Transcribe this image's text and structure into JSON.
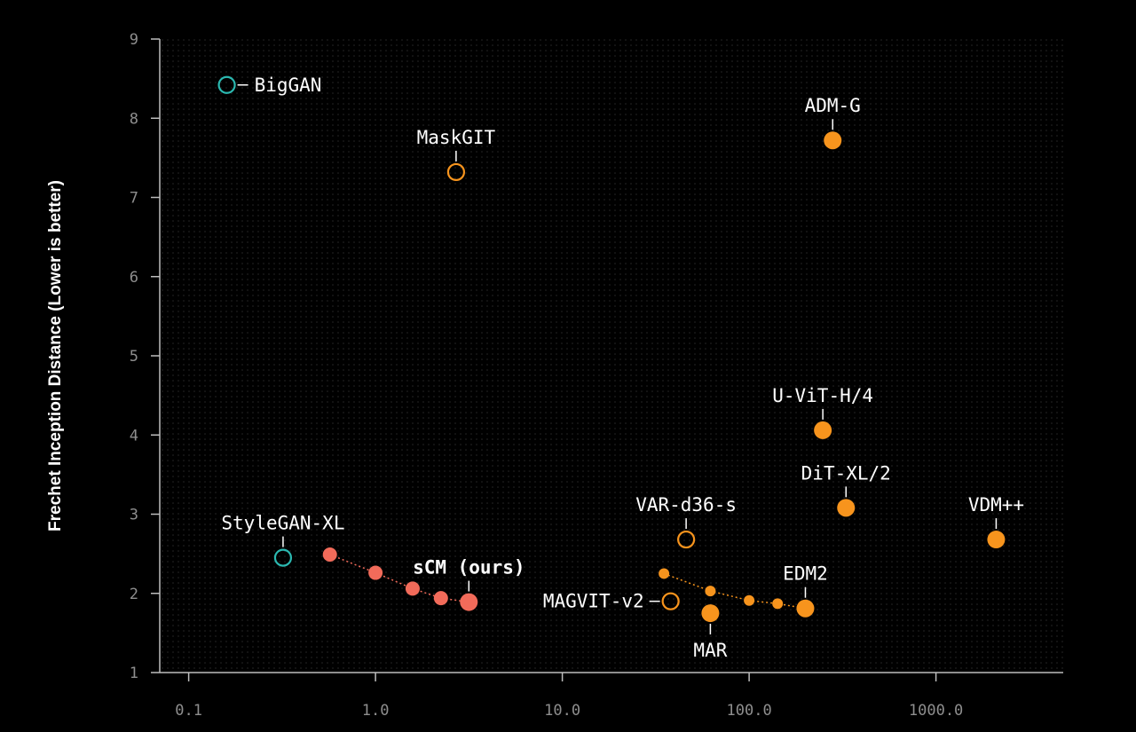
{
  "chart_data": {
    "type": "scatter",
    "title": "",
    "xlabel": "",
    "ylabel": "Frechet Inception Distance (Lower is better)",
    "xscale": "log",
    "xlim": [
      0.07,
      4800
    ],
    "ylim": [
      1,
      9
    ],
    "x_ticks": [
      0.1,
      1,
      10,
      100,
      1000
    ],
    "x_tick_labels": [
      "0.1",
      "1.0",
      "10.0",
      "100.0",
      "1000.0"
    ],
    "y_ticks": [
      1,
      2,
      3,
      4,
      5,
      6,
      7,
      8,
      9
    ],
    "y_tick_labels": [
      "1",
      "2",
      "3",
      "4",
      "5",
      "6",
      "7",
      "8",
      "9"
    ],
    "grid": "dotted background",
    "legend": "none",
    "colors": {
      "teal": "#2bb8b0",
      "orange": "#f7941d",
      "coral": "#f26b5a"
    },
    "points": [
      {
        "label": "BigGAN",
        "x": 0.16,
        "y": 8.42,
        "color": "#2bb8b0",
        "style": "hollow",
        "size": "large",
        "label_pos": "right"
      },
      {
        "label": "StyleGAN-XL",
        "x": 0.32,
        "y": 2.45,
        "color": "#2bb8b0",
        "style": "hollow",
        "size": "large",
        "label_pos": "above"
      },
      {
        "label": "MaskGIT",
        "x": 2.7,
        "y": 7.32,
        "color": "#f7941d",
        "style": "hollow",
        "size": "large",
        "label_pos": "above"
      },
      {
        "label": "ADM-G",
        "x": 280,
        "y": 7.72,
        "color": "#f7941d",
        "style": "filled",
        "size": "large",
        "label_pos": "above"
      },
      {
        "label": "U-ViT-H/4",
        "x": 248,
        "y": 4.06,
        "color": "#f7941d",
        "style": "filled",
        "size": "large",
        "label_pos": "above"
      },
      {
        "label": "DiT-XL/2",
        "x": 330,
        "y": 3.08,
        "color": "#f7941d",
        "style": "filled",
        "size": "large",
        "label_pos": "above"
      },
      {
        "label": "VDM++",
        "x": 2100,
        "y": 2.68,
        "color": "#f7941d",
        "style": "filled",
        "size": "large",
        "label_pos": "above"
      },
      {
        "label": "VAR-d36-s",
        "x": 46,
        "y": 2.68,
        "color": "#f7941d",
        "style": "hollow",
        "size": "large",
        "label_pos": "above"
      },
      {
        "label": "MAGVIT-v2",
        "x": 38,
        "y": 1.9,
        "color": "#f7941d",
        "style": "hollow",
        "size": "large",
        "label_pos": "left"
      },
      {
        "label": "MAR",
        "x": 62,
        "y": 1.75,
        "color": "#f7941d",
        "style": "filled",
        "size": "large",
        "label_pos": "below"
      }
    ],
    "series": [
      {
        "name": "sCM (ours)",
        "color": "#f26b5a",
        "x": [
          0.57,
          1.0,
          1.58,
          2.24,
          3.16
        ],
        "y": [
          2.49,
          2.26,
          2.06,
          1.94,
          1.89
        ],
        "label_anchor_index": 4
      },
      {
        "name": "EDM2",
        "color": "#f7941d",
        "x": [
          35,
          62,
          100,
          142,
          200
        ],
        "y": [
          2.25,
          2.03,
          1.91,
          1.87,
          1.81
        ],
        "label_anchor_index": 4
      }
    ]
  }
}
